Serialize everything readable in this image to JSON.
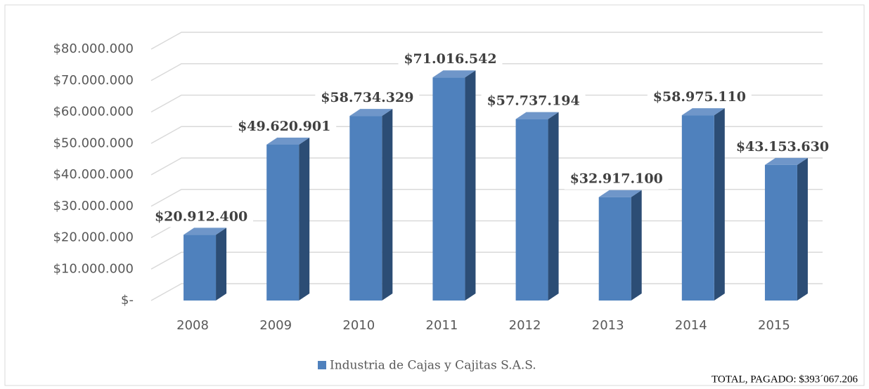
{
  "chart_data": {
    "type": "bar3d",
    "categories": [
      "2008",
      "2009",
      "2010",
      "2011",
      "2012",
      "2013",
      "2014",
      "2015"
    ],
    "series": [
      {
        "name": "Industria de Cajas y Cajitas S.A.S.",
        "color": "#4f81bd",
        "values": [
          20912400,
          49620901,
          58734329,
          71016542,
          57737194,
          32917100,
          58975110,
          43153630
        ],
        "value_labels": [
          "$20.912.400",
          "$49.620.901",
          "$58.734.329",
          "$71.016.542",
          "$57.737.194",
          "$32.917.100",
          "$58.975.110",
          "$43.153.630"
        ]
      }
    ],
    "ylim": [
      0,
      80000000
    ],
    "yticks": [
      {
        "value": 0,
        "label": "$-"
      },
      {
        "value": 10000000,
        "label": "$10.000.000"
      },
      {
        "value": 20000000,
        "label": "$20.000.000"
      },
      {
        "value": 30000000,
        "label": "$30.000.000"
      },
      {
        "value": 40000000,
        "label": "$40.000.000"
      },
      {
        "value": 50000000,
        "label": "$50.000.000"
      },
      {
        "value": 60000000,
        "label": "$60.000.000"
      },
      {
        "value": 70000000,
        "label": "$70.000.000"
      },
      {
        "value": 80000000,
        "label": "$80.000.000"
      }
    ],
    "grid": true,
    "legend": "bottom",
    "annotation": "TOTAL, PAGADO: $393´067.206"
  }
}
